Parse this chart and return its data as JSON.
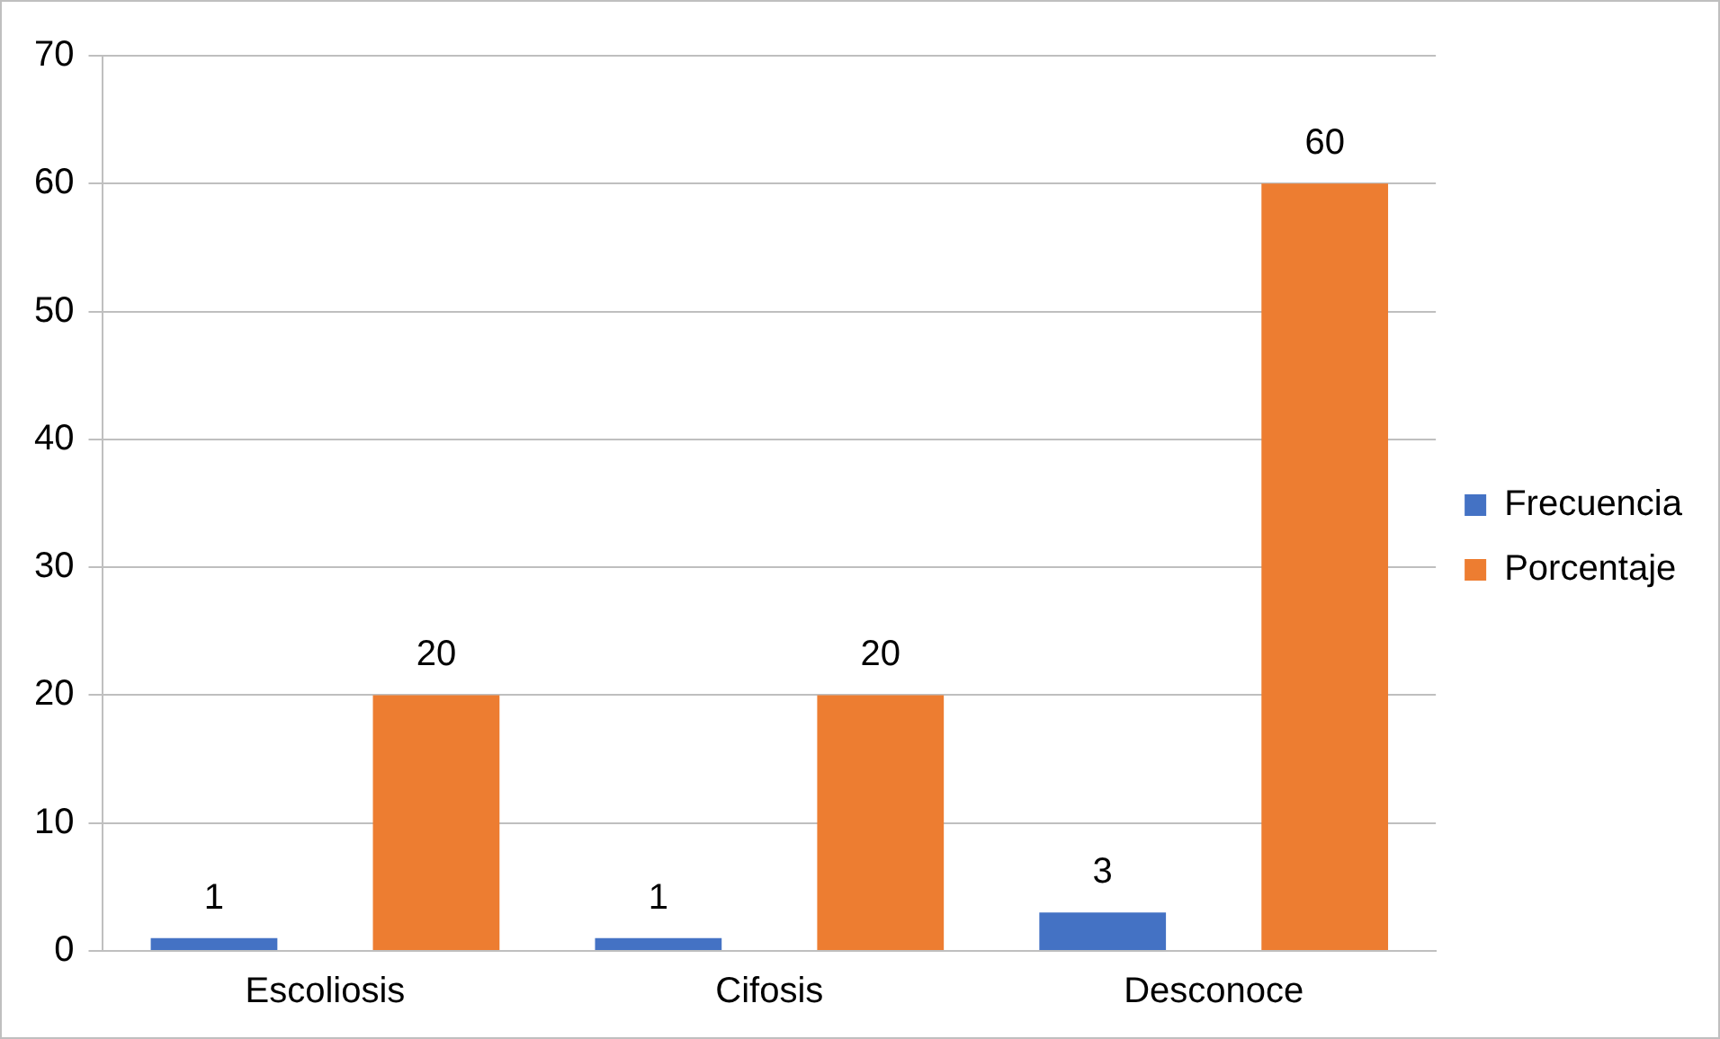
{
  "chart_data": {
    "type": "bar",
    "categories": [
      "Escoliosis",
      "Cifosis",
      "Desconoce"
    ],
    "series": [
      {
        "name": "Frecuencia",
        "color": "#4472c4",
        "values": [
          1,
          1,
          3
        ]
      },
      {
        "name": "Porcentaje",
        "color": "#ed7d31",
        "values": [
          20,
          20,
          60
        ]
      }
    ],
    "ylim": [
      0,
      70
    ],
    "yticks": [
      0,
      10,
      20,
      30,
      40,
      50,
      60,
      70
    ],
    "grid": "y",
    "legend": "right",
    "data_labels": true
  }
}
